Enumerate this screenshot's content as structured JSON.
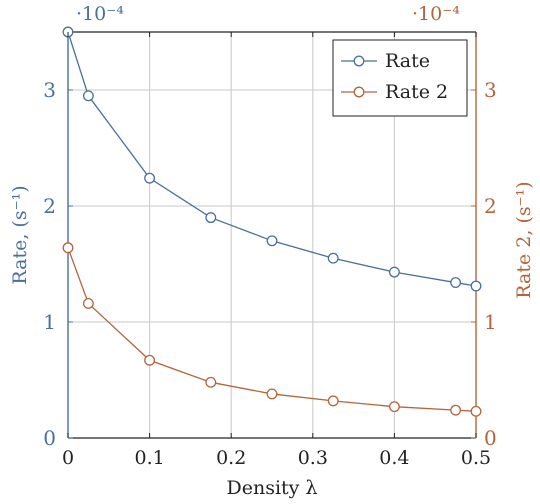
{
  "chart_data": {
    "type": "line",
    "xlabel": "Density λ",
    "x_ticks": [
      0,
      0.1,
      0.2,
      0.3,
      0.4,
      0.5
    ],
    "xlim": [
      0,
      0.5
    ],
    "grid": true,
    "legend_position": "top-right",
    "y_axes": {
      "left": {
        "label": "Rate, (s⁻¹)",
        "ylim": [
          0,
          3.5
        ],
        "ticks": [
          0,
          1,
          2,
          3
        ],
        "multiplier": "·10⁻⁴",
        "color": "#4a6f9c"
      },
      "right": {
        "label": "Rate 2, (s⁻¹)",
        "ylim": [
          0,
          3.5
        ],
        "ticks": [
          0,
          1,
          2,
          3
        ],
        "multiplier": "·10⁻⁴",
        "color": "#b5633a"
      }
    },
    "series": [
      {
        "name": "Rate",
        "axis": "left",
        "color": "#4a6f9c",
        "x": [
          0,
          0.025,
          0.1,
          0.175,
          0.25,
          0.325,
          0.4,
          0.475,
          0.5
        ],
        "y": [
          3.5,
          2.95,
          2.24,
          1.9,
          1.7,
          1.55,
          1.43,
          1.34,
          1.31
        ]
      },
      {
        "name": "Rate 2",
        "axis": "right",
        "color": "#b5633a",
        "x": [
          0,
          0.025,
          0.1,
          0.175,
          0.25,
          0.325,
          0.4,
          0.475,
          0.5
        ],
        "y": [
          1.64,
          1.16,
          0.67,
          0.48,
          0.38,
          0.32,
          0.27,
          0.24,
          0.23
        ]
      }
    ]
  }
}
